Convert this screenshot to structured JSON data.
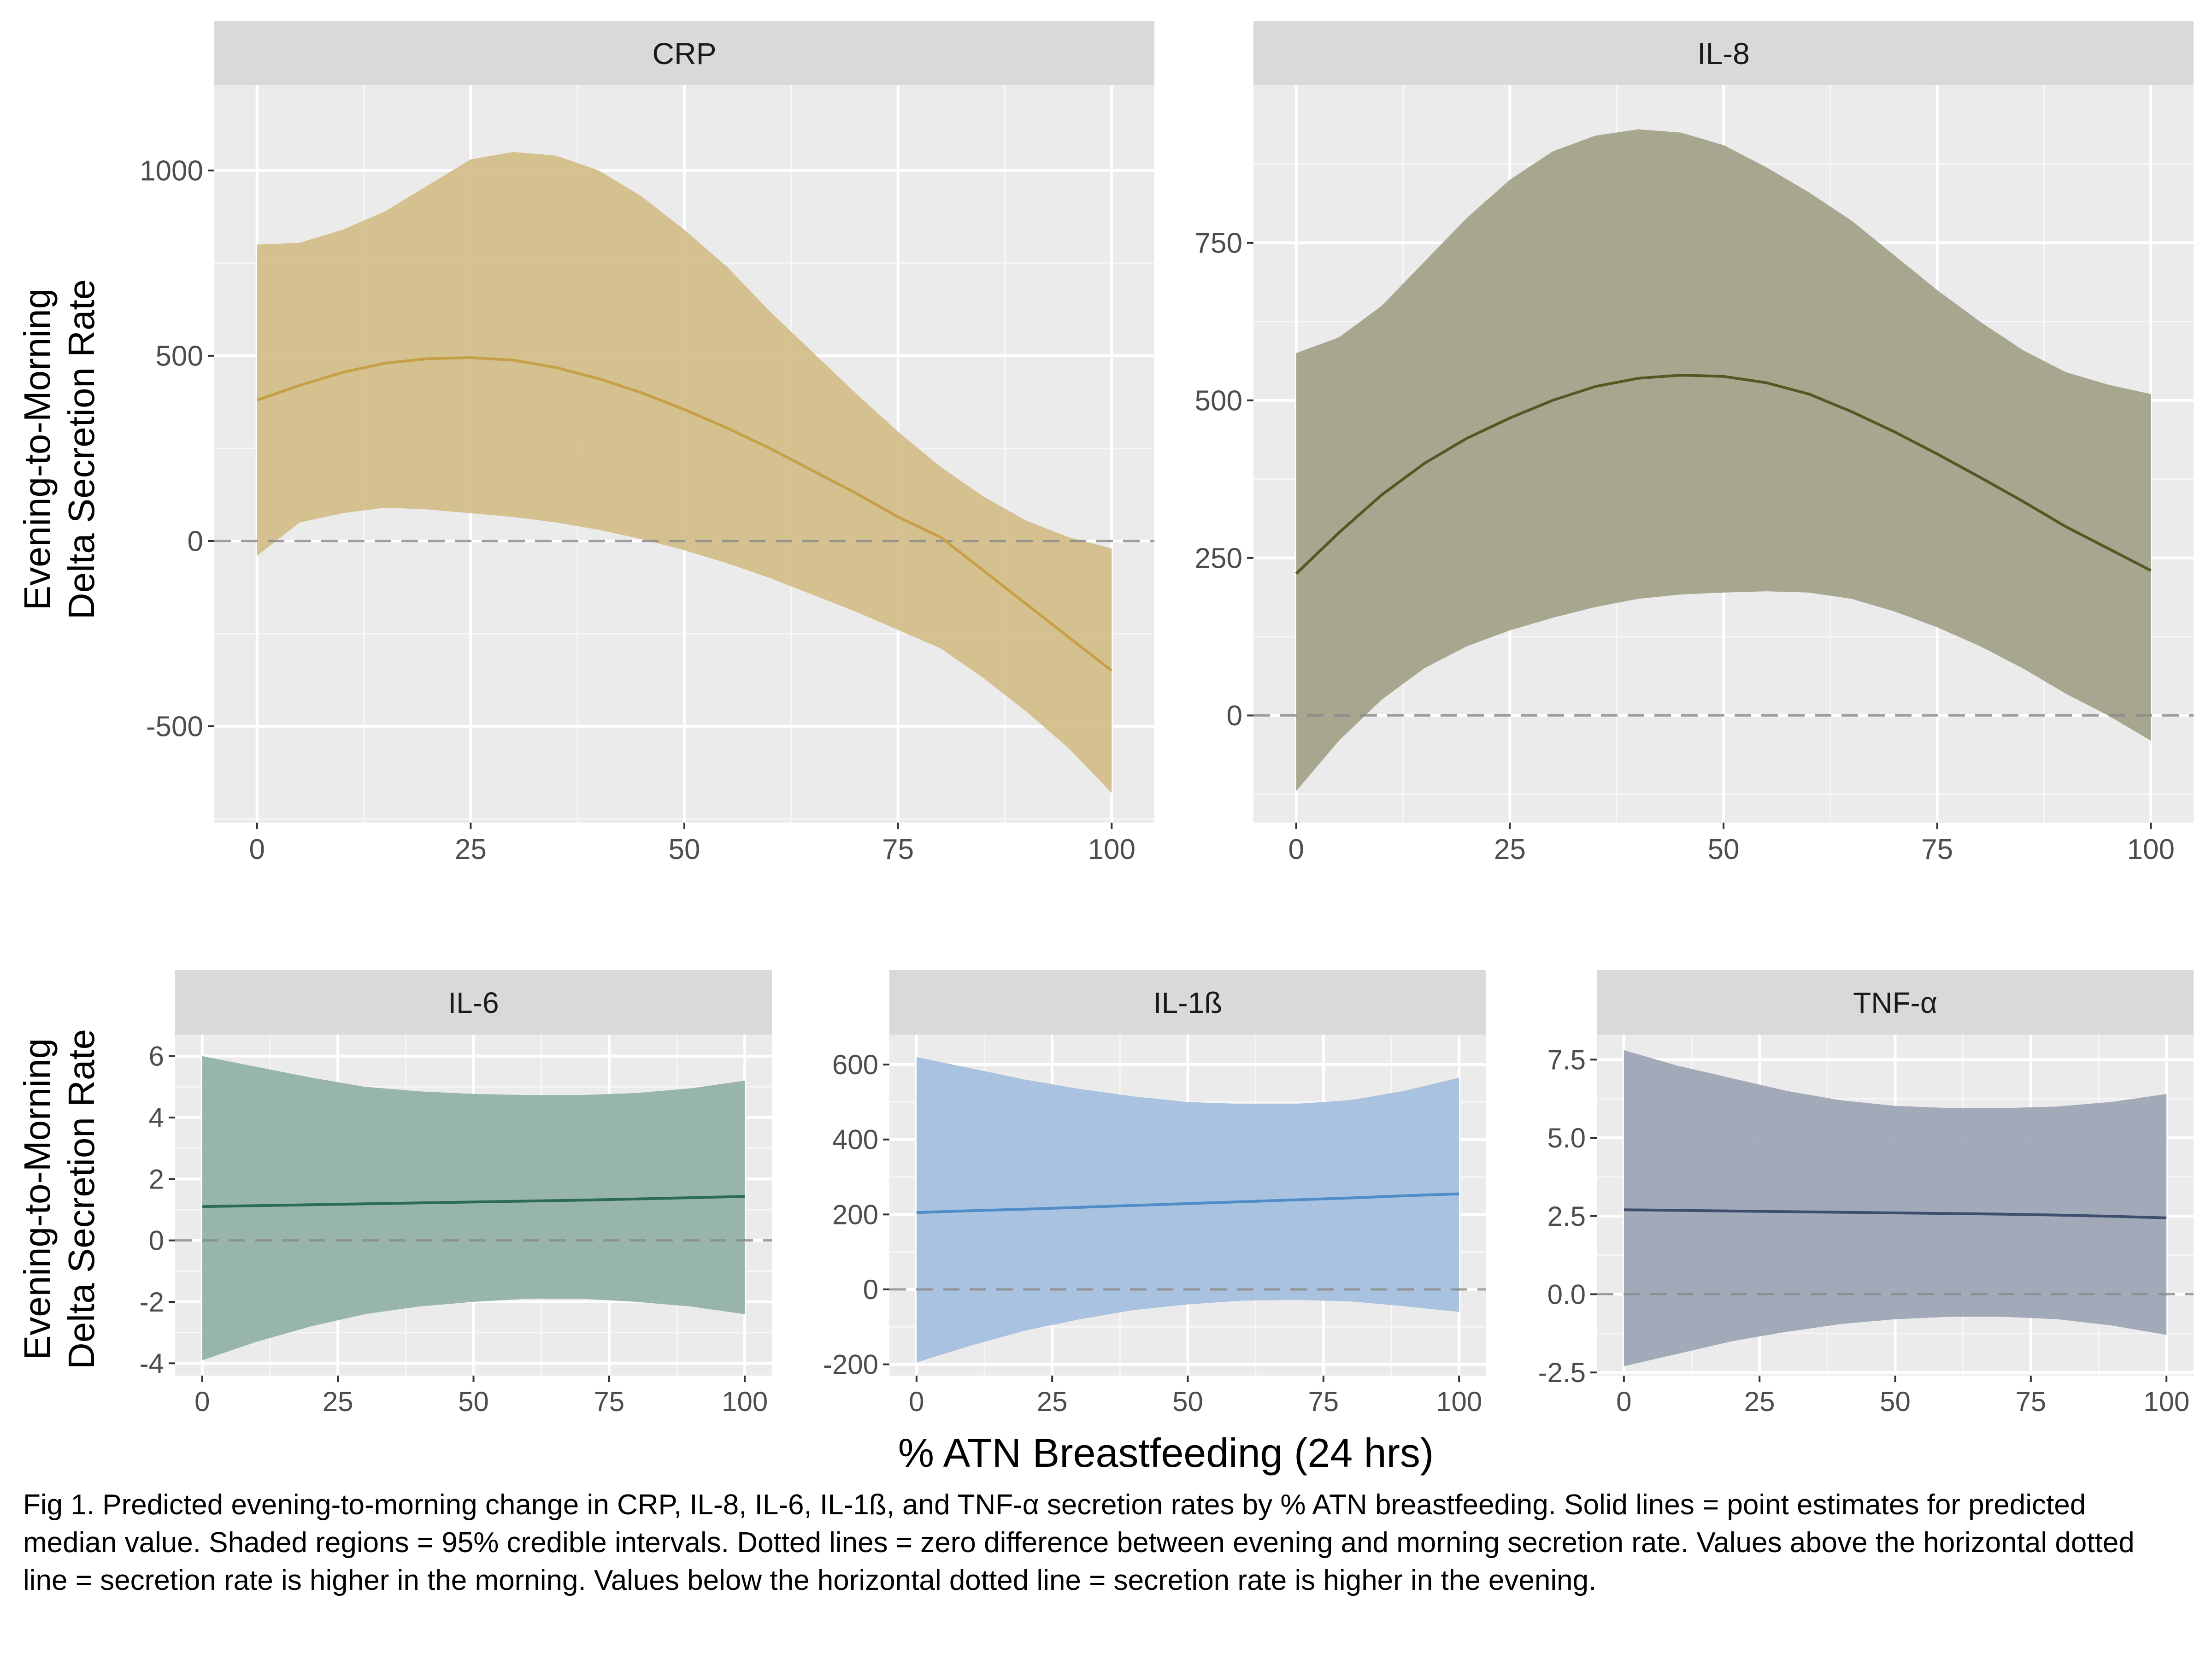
{
  "figure": {
    "y_axis_label_line1": "Evening-to-Morning",
    "y_axis_label_line2": "Delta Secretion Rate",
    "x_axis_label": "% ATN Breastfeeding (24 hrs)",
    "caption": "Fig 1. Predicted evening-to-morning change in CRP, IL-8, IL-6, IL-1ß, and TNF-α secretion rates by % ATN breastfeeding. Solid lines = point estimates for predicted median value. Shaded regions = 95% credible intervals. Dotted lines = zero difference between evening and morning secretion rate. Values above the horizontal dotted line = secretion rate is higher in the morning. Values below the horizontal dotted line = secretion rate is higher in the evening."
  },
  "chart_data": [
    {
      "type": "line",
      "title": "CRP",
      "x": [
        0,
        5,
        10,
        15,
        20,
        25,
        30,
        35,
        40,
        45,
        50,
        55,
        60,
        65,
        70,
        75,
        80,
        85,
        90,
        95,
        100
      ],
      "series": [
        {
          "values": [
            380,
            420,
            455,
            480,
            492,
            495,
            488,
            468,
            438,
            400,
            355,
            305,
            250,
            190,
            130,
            65,
            10,
            -80,
            -170,
            -260,
            -350
          ],
          "lower": [
            -40,
            50,
            75,
            90,
            85,
            75,
            65,
            50,
            30,
            5,
            -25,
            -60,
            -100,
            -145,
            -190,
            -240,
            -290,
            -370,
            -460,
            -560,
            -680
          ],
          "upper": [
            800,
            805,
            840,
            890,
            960,
            1030,
            1050,
            1040,
            1000,
            930,
            840,
            740,
            620,
            510,
            400,
            295,
            200,
            120,
            55,
            10,
            -20
          ]
        }
      ],
      "xlim": [
        -5,
        105
      ],
      "ylim": [
        -760,
        1230
      ],
      "yticks": [
        -500,
        0,
        500,
        1000
      ],
      "ytick_labels": [
        "-500",
        "0",
        "500",
        "1000"
      ],
      "xticks": [
        0,
        25,
        50,
        75,
        100
      ],
      "grid": true,
      "colors": {
        "fill": "#d4bf8a",
        "line": "#c6a046"
      }
    },
    {
      "type": "line",
      "title": "IL-8",
      "x": [
        0,
        5,
        10,
        15,
        20,
        25,
        30,
        35,
        40,
        45,
        50,
        55,
        60,
        65,
        70,
        75,
        80,
        85,
        90,
        95,
        100
      ],
      "series": [
        {
          "values": [
            225,
            290,
            350,
            400,
            440,
            472,
            500,
            522,
            535,
            540,
            538,
            528,
            510,
            482,
            450,
            415,
            378,
            340,
            300,
            265,
            230
          ],
          "lower": [
            -120,
            -40,
            25,
            75,
            110,
            135,
            155,
            172,
            185,
            192,
            195,
            197,
            195,
            185,
            165,
            140,
            110,
            75,
            35,
            0,
            -40
          ],
          "upper": [
            575,
            600,
            650,
            720,
            790,
            850,
            895,
            920,
            930,
            925,
            905,
            870,
            830,
            785,
            730,
            675,
            625,
            580,
            545,
            525,
            510
          ]
        }
      ],
      "xlim": [
        -5,
        105
      ],
      "ylim": [
        -170,
        1000
      ],
      "yticks": [
        0,
        250,
        500,
        750
      ],
      "ytick_labels": [
        "0",
        "250",
        "500",
        "750"
      ],
      "xticks": [
        0,
        25,
        50,
        75,
        100
      ],
      "grid": true,
      "colors": {
        "fill": "#a3a28a",
        "line": "#545825"
      }
    },
    {
      "type": "line",
      "title": "IL-6",
      "x": [
        0,
        10,
        20,
        30,
        40,
        50,
        60,
        70,
        80,
        90,
        100
      ],
      "series": [
        {
          "values": [
            1.1,
            1.13,
            1.16,
            1.19,
            1.22,
            1.25,
            1.28,
            1.31,
            1.35,
            1.39,
            1.43
          ],
          "lower": [
            -3.9,
            -3.3,
            -2.8,
            -2.4,
            -2.15,
            -2.0,
            -1.9,
            -1.9,
            -2.0,
            -2.15,
            -2.4
          ],
          "upper": [
            6.0,
            5.65,
            5.3,
            5.0,
            4.85,
            4.77,
            4.73,
            4.73,
            4.8,
            4.95,
            5.2
          ]
        }
      ],
      "xlim": [
        -5,
        105
      ],
      "ylim": [
        -4.4,
        6.7
      ],
      "yticks": [
        -4,
        -2,
        0,
        2,
        4,
        6
      ],
      "ytick_labels": [
        "-4",
        "-2",
        "0",
        "2",
        "4",
        "6"
      ],
      "xticks": [
        0,
        25,
        50,
        75,
        100
      ],
      "grid": true,
      "colors": {
        "fill": "#92b2a5",
        "line": "#2d6a58"
      }
    },
    {
      "type": "line",
      "title": "IL-1ß",
      "x": [
        0,
        10,
        20,
        30,
        40,
        50,
        60,
        70,
        80,
        90,
        100
      ],
      "series": [
        {
          "values": [
            205,
            210,
            214,
            219,
            224,
            229,
            234,
            239,
            244,
            250,
            255
          ],
          "lower": [
            -195,
            -150,
            -110,
            -80,
            -55,
            -40,
            -30,
            -28,
            -32,
            -45,
            -60
          ],
          "upper": [
            620,
            590,
            560,
            535,
            515,
            500,
            495,
            495,
            505,
            530,
            565
          ]
        }
      ],
      "xlim": [
        -5,
        105
      ],
      "ylim": [
        -230,
        680
      ],
      "yticks": [
        -200,
        0,
        200,
        400,
        600
      ],
      "ytick_labels": [
        "-200",
        "0",
        "200",
        "400",
        "600"
      ],
      "xticks": [
        0,
        25,
        50,
        75,
        100
      ],
      "grid": true,
      "colors": {
        "fill": "#a4c0de",
        "line": "#4f8cc8"
      }
    },
    {
      "type": "line",
      "title": "TNF-α",
      "x": [
        0,
        10,
        20,
        30,
        40,
        50,
        60,
        70,
        80,
        90,
        100
      ],
      "series": [
        {
          "values": [
            2.7,
            2.68,
            2.66,
            2.64,
            2.62,
            2.6,
            2.58,
            2.56,
            2.53,
            2.49,
            2.44
          ],
          "lower": [
            -2.3,
            -1.9,
            -1.5,
            -1.2,
            -0.95,
            -0.8,
            -0.72,
            -0.72,
            -0.8,
            -1.0,
            -1.3
          ],
          "upper": [
            7.8,
            7.3,
            6.9,
            6.5,
            6.2,
            6.02,
            5.95,
            5.95,
            6.0,
            6.15,
            6.4
          ]
        }
      ],
      "xlim": [
        -5,
        105
      ],
      "ylim": [
        -2.6,
        8.3
      ],
      "yticks": [
        -2.5,
        0,
        2.5,
        5,
        7.5
      ],
      "ytick_labels": [
        "-2.5",
        "0.0",
        "2.5",
        "5.0",
        "7.5"
      ],
      "xticks": [
        0,
        25,
        50,
        75,
        100
      ],
      "grid": true,
      "colors": {
        "fill": "#9ea5b6",
        "line": "#3e4f6e"
      }
    }
  ]
}
